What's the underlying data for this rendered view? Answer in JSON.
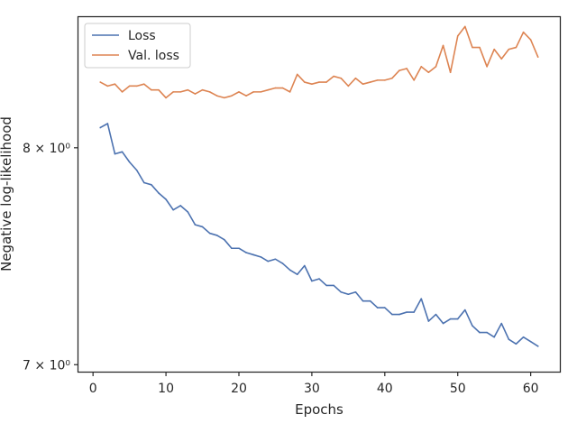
{
  "chart_data": {
    "type": "line",
    "xlabel": "Epochs",
    "ylabel": "Negative log-likelihood",
    "yscale": "log",
    "xlim": [
      -2.0,
      64.0
    ],
    "ylim": [
      6.97,
      8.67
    ],
    "xticks": [
      0,
      10,
      20,
      30,
      40,
      50,
      60
    ],
    "yticks": [
      {
        "value": 7,
        "label": "7 × 10⁰"
      },
      {
        "value": 8,
        "label": "8 × 10⁰"
      }
    ],
    "legend_position": "top-left",
    "grid": false,
    "x": [
      1,
      2,
      3,
      4,
      5,
      6,
      7,
      8,
      9,
      10,
      11,
      12,
      13,
      14,
      15,
      16,
      17,
      18,
      19,
      20,
      21,
      22,
      23,
      24,
      25,
      26,
      27,
      28,
      29,
      30,
      31,
      32,
      33,
      34,
      35,
      36,
      37,
      38,
      39,
      40,
      41,
      42,
      43,
      44,
      45,
      46,
      47,
      48,
      49,
      50,
      51,
      52,
      53,
      54,
      55,
      56,
      57,
      58,
      59,
      60,
      61
    ],
    "series": [
      {
        "name": "Loss",
        "color": "#4c72b0",
        "values": [
          8.1,
          8.12,
          7.97,
          7.98,
          7.93,
          7.89,
          7.83,
          7.82,
          7.78,
          7.75,
          7.7,
          7.72,
          7.69,
          7.63,
          7.62,
          7.59,
          7.58,
          7.56,
          7.52,
          7.52,
          7.5,
          7.49,
          7.48,
          7.46,
          7.47,
          7.45,
          7.42,
          7.4,
          7.44,
          7.37,
          7.38,
          7.35,
          7.35,
          7.32,
          7.31,
          7.32,
          7.28,
          7.28,
          7.25,
          7.25,
          7.22,
          7.22,
          7.23,
          7.23,
          7.29,
          7.19,
          7.22,
          7.18,
          7.2,
          7.2,
          7.24,
          7.17,
          7.14,
          7.14,
          7.12,
          7.18,
          7.11,
          7.09,
          7.12,
          7.1,
          7.08
        ]
      },
      {
        "name": "Val. loss",
        "color": "#dd8452",
        "values": [
          8.33,
          8.31,
          8.32,
          8.28,
          8.31,
          8.31,
          8.32,
          8.29,
          8.29,
          8.25,
          8.28,
          8.28,
          8.29,
          8.27,
          8.29,
          8.28,
          8.26,
          8.25,
          8.26,
          8.28,
          8.26,
          8.28,
          8.28,
          8.29,
          8.3,
          8.3,
          8.28,
          8.37,
          8.33,
          8.32,
          8.33,
          8.33,
          8.36,
          8.35,
          8.31,
          8.35,
          8.32,
          8.33,
          8.34,
          8.34,
          8.35,
          8.39,
          8.4,
          8.34,
          8.41,
          8.38,
          8.41,
          8.52,
          8.38,
          8.57,
          8.62,
          8.51,
          8.51,
          8.41,
          8.5,
          8.45,
          8.5,
          8.51,
          8.59,
          8.55,
          8.46
        ]
      }
    ]
  }
}
